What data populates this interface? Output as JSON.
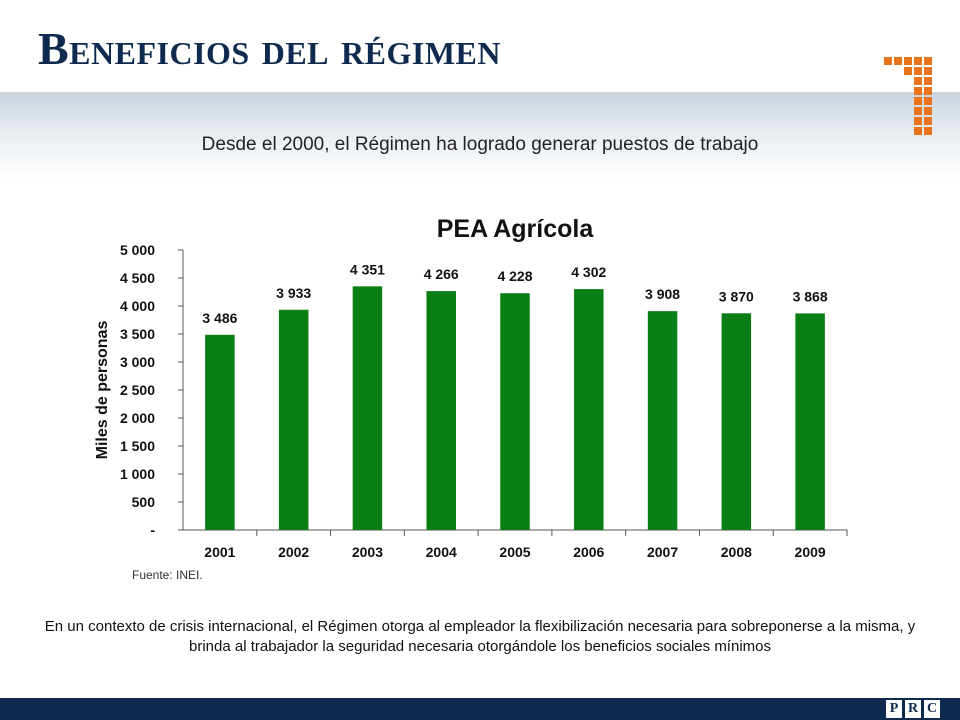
{
  "slide": {
    "title": "Beneficios del régimen",
    "subtitle": "Desde el 2000, el Régimen ha logrado generar puestos de trabajo",
    "source": "Fuente: INEI.",
    "note": "En un contexto de crisis internacional, el Régimen otorga al empleador la flexibilización necesaria para sobreponerse a la misma, y brinda al trabajador la seguridad necesaria otorgándole los beneficios sociales mínimos",
    "footer_letters": [
      "P",
      "R",
      "C"
    ]
  },
  "colors": {
    "title": "#0e2a4e",
    "bar": "#0a7d14",
    "footer": "#0e2a4e",
    "logo": "#e8731a"
  },
  "chart_data": {
    "type": "bar",
    "title": "PEA Agrícola",
    "xlabel": "",
    "ylabel": "Miles de personas",
    "categories": [
      "2001",
      "2002",
      "2003",
      "2004",
      "2005",
      "2006",
      "2007",
      "2008",
      "2009"
    ],
    "values": [
      3486,
      3933,
      4351,
      4266,
      4228,
      4302,
      3908,
      3870,
      3868
    ],
    "value_labels": [
      "3 486",
      "3 933",
      "4 351",
      "4 266",
      "4 228",
      "4 302",
      "3 908",
      "3 870",
      "3 868"
    ],
    "ylim": [
      0,
      5000
    ],
    "yticks": [
      0,
      500,
      1000,
      1500,
      2000,
      2500,
      3000,
      3500,
      4000,
      4500,
      5000
    ],
    "ytick_labels": [
      "-",
      "500",
      "1 000",
      "1 500",
      "2 000",
      "2 500",
      "3 000",
      "3 500",
      "4 000",
      "4 500",
      "5 000"
    ],
    "grid": false,
    "legend": "none"
  }
}
